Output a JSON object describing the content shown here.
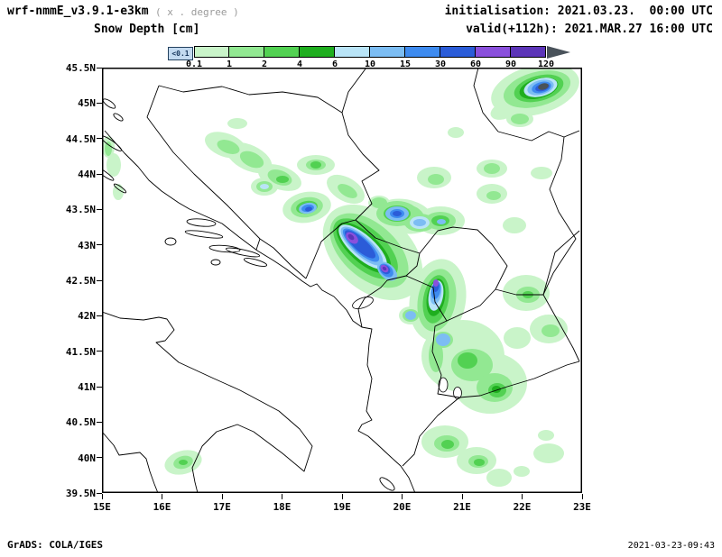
{
  "header": {
    "model_title": "wrf-nmmE_v3.9.1-e3km",
    "model_subtitle": "( x . degree )",
    "variable_title": "Snow Depth [cm]",
    "init_label": "initialisation: 2021.03.23.  00:00 UTC",
    "valid_label": "valid(+112h): 2021.MAR.27 16:00 UTC"
  },
  "legend": {
    "below_label": "<0.1",
    "below_color": "#c3daf0",
    "tick_labels": [
      "0.1",
      "1",
      "2",
      "4",
      "6",
      "10",
      "15",
      "30",
      "60",
      "90",
      "120"
    ],
    "colors": [
      "#c9f4c9",
      "#92e892",
      "#52d152",
      "#1fae1f",
      "#b9e4f7",
      "#7cbdf3",
      "#3e8bef",
      "#2b5cd8",
      "#8a50dc",
      "#5c35b8"
    ],
    "over_color": "#49525a",
    "units": "cm"
  },
  "map": {
    "x_ticks": [
      "15E",
      "16E",
      "17E",
      "18E",
      "19E",
      "20E",
      "21E",
      "22E",
      "23E"
    ],
    "y_ticks": [
      "45.5N",
      "45N",
      "44.5N",
      "44N",
      "43.5N",
      "43N",
      "42.5N",
      "42N",
      "41.5N",
      "41N",
      "40.5N",
      "40N",
      "39.5N"
    ]
  },
  "footer": {
    "left": "GrADS: COLA/IGES",
    "right": "2021-03-23-09:43"
  }
}
